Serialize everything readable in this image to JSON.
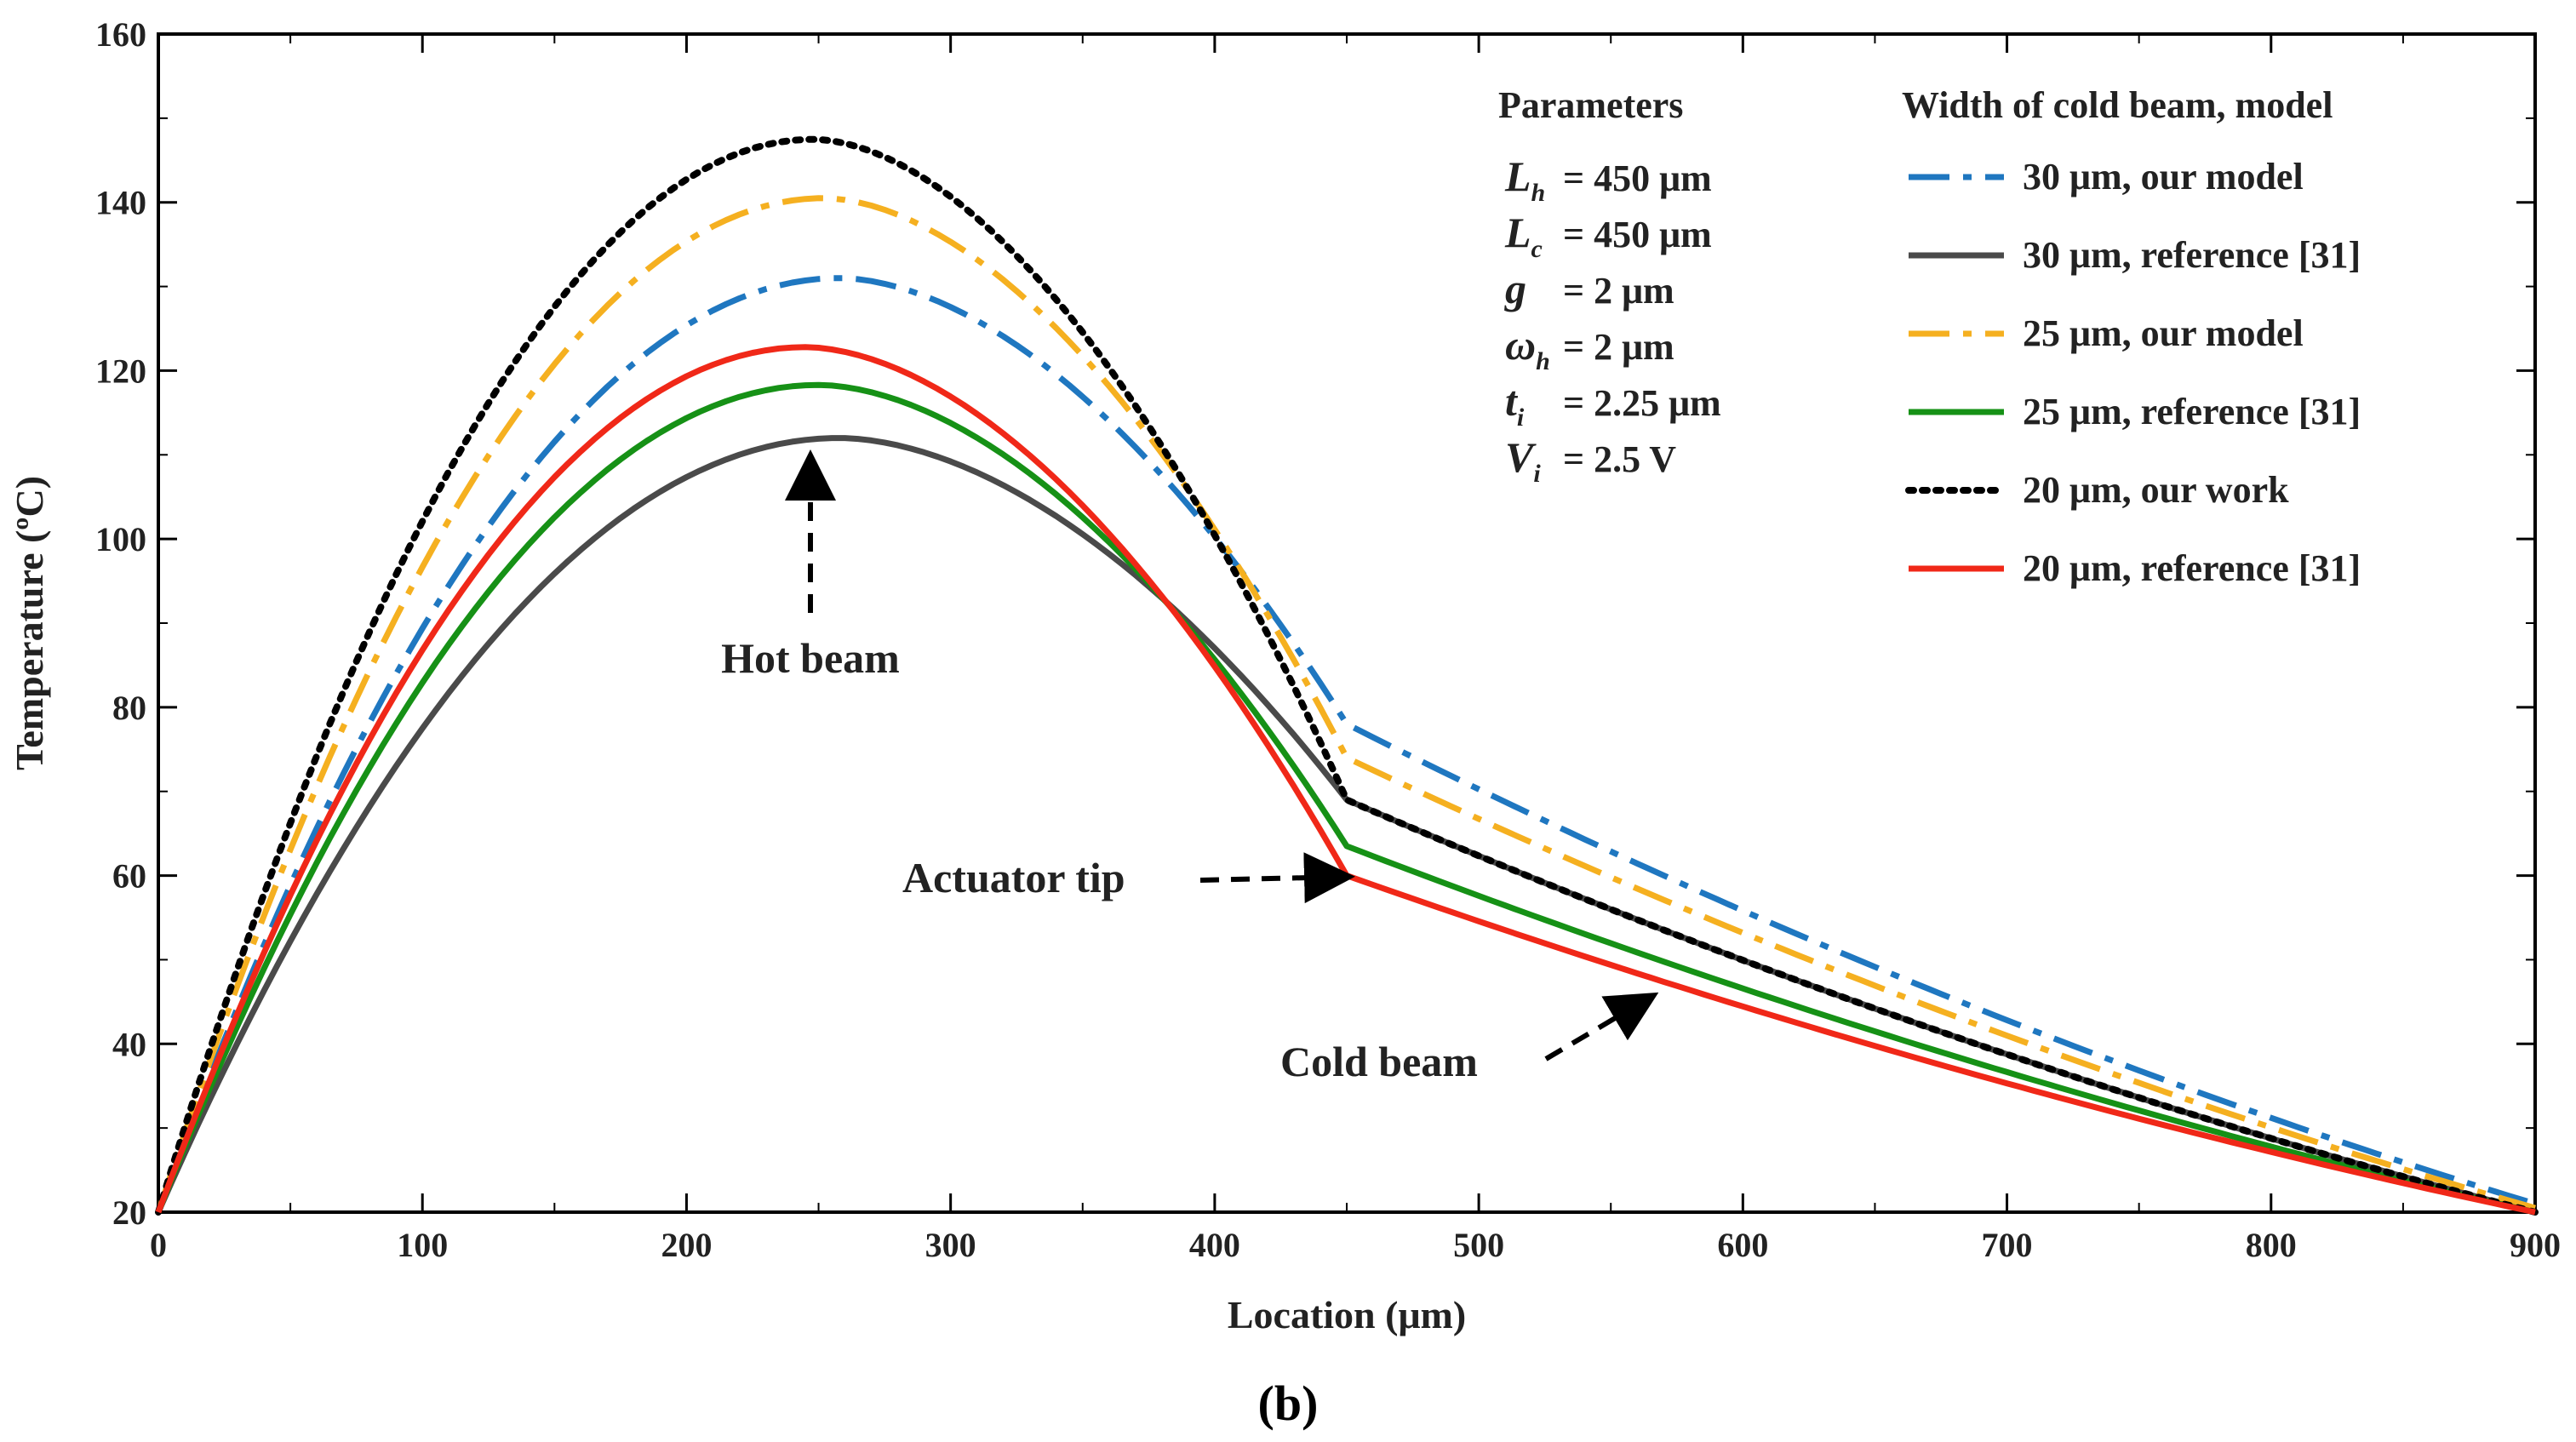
{
  "chart_data": {
    "type": "line",
    "caption": "(b)",
    "xlabel": "Location (μm)",
    "ylabel": "Temperature (ºC)",
    "xlim": [
      0,
      900
    ],
    "ylim": [
      20,
      160
    ],
    "xticks": [
      0,
      100,
      200,
      300,
      400,
      500,
      600,
      700,
      800,
      900
    ],
    "yticks": [
      20,
      40,
      60,
      80,
      100,
      120,
      140,
      160
    ],
    "grid": false,
    "legend": {
      "title": "Width of cold beam, model",
      "placement": "top-right"
    },
    "parameters": {
      "title": "Parameters",
      "items": [
        {
          "sym": "L",
          "sub": "h",
          "eq": "= 450 μm"
        },
        {
          "sym": "L",
          "sub": "c",
          "eq": "= 450 μm"
        },
        {
          "sym": "g",
          "sub": "",
          "eq": "= 2 μm"
        },
        {
          "sym": "ω",
          "sub": "h",
          "eq": "= 2 μm"
        },
        {
          "sym": "t",
          "sub": "i",
          "eq": "= 2.25 μm"
        },
        {
          "sym": "V",
          "sub": "i",
          "eq": "= 2.5 V"
        }
      ]
    },
    "annotations": [
      {
        "text": "Hot beam",
        "x": 240,
        "y": 112
      },
      {
        "text": "Actuator tip",
        "x": 450,
        "y": 60
      },
      {
        "text": "Cold beam",
        "x": 560,
        "y": 47
      }
    ],
    "series": [
      {
        "name": "30 μm, our model",
        "color": "#1f77c0",
        "dash": "dashdot",
        "peak_x": 258,
        "peak_y": 131,
        "tip_y": 78,
        "end_y": 21
      },
      {
        "name": "30 μm, reference [31]",
        "color": "#4a4a4a",
        "dash": "solid",
        "peak_x": 258,
        "peak_y": 112,
        "tip_y": 69,
        "end_y": 20
      },
      {
        "name": "25 μm, our model",
        "color": "#f5b020",
        "dash": "dashdot",
        "peak_x": 252,
        "peak_y": 140.5,
        "tip_y": 74,
        "end_y": 20.5
      },
      {
        "name": "25 μm, reference [31]",
        "color": "#169116",
        "dash": "solid",
        "peak_x": 250,
        "peak_y": 118.3,
        "tip_y": 63.5,
        "end_y": 20
      },
      {
        "name": "20 μm, our work",
        "color": "#000000",
        "dash": "dotted",
        "peak_x": 248,
        "peak_y": 147.5,
        "tip_y": 69,
        "end_y": 20
      },
      {
        "name": "20 μm, reference [31]",
        "color": "#f02818",
        "dash": "solid",
        "peak_x": 245,
        "peak_y": 122.8,
        "tip_y": 60,
        "end_y": 20
      }
    ]
  }
}
